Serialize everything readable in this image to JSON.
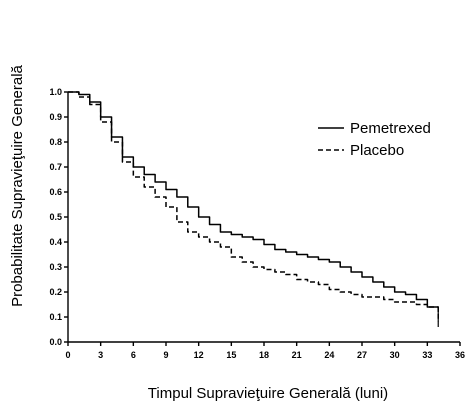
{
  "chart_data": {
    "type": "line",
    "title": "",
    "xlabel": "Timpul  Supravieţuire Generală (luni)",
    "ylabel": "Probabilitate Supravieţuire Generală",
    "xlim": [
      0,
      36
    ],
    "ylim": [
      0,
      1.0
    ],
    "x_ticks": [
      0,
      3,
      6,
      9,
      12,
      15,
      18,
      21,
      24,
      27,
      30,
      33,
      36
    ],
    "y_ticks": [
      0.0,
      0.1,
      0.2,
      0.3,
      0.4,
      0.5,
      0.6,
      0.7,
      0.8,
      0.9,
      1.0
    ],
    "x_tick_labels": [
      "0",
      "3",
      "6",
      "9",
      "12",
      "15",
      "18",
      "21",
      "24",
      "27",
      "30",
      "33",
      "36"
    ],
    "y_tick_labels": [
      "0.0",
      "0.1",
      "0.2",
      "0.3",
      "0.4",
      "0.5",
      "0.6",
      "0.7",
      "0.8",
      "0.9",
      "1.0"
    ],
    "grid": false,
    "legend_position": "top-right",
    "series": [
      {
        "name": "Pemetrexed",
        "style": "solid",
        "color": "#000000",
        "x": [
          0,
          1,
          2,
          3,
          4,
          5,
          6,
          7,
          8,
          9,
          10,
          11,
          12,
          13,
          14,
          15,
          16,
          17,
          18,
          19,
          20,
          21,
          22,
          23,
          24,
          25,
          26,
          27,
          28,
          29,
          30,
          31,
          32,
          33,
          34
        ],
        "y": [
          1.0,
          0.99,
          0.96,
          0.9,
          0.82,
          0.74,
          0.7,
          0.67,
          0.64,
          0.61,
          0.58,
          0.54,
          0.5,
          0.47,
          0.44,
          0.43,
          0.42,
          0.41,
          0.39,
          0.37,
          0.36,
          0.35,
          0.34,
          0.33,
          0.32,
          0.3,
          0.28,
          0.26,
          0.24,
          0.22,
          0.2,
          0.19,
          0.17,
          0.14,
          0.12
        ]
      },
      {
        "name": "Placebo",
        "style": "dashed",
        "color": "#000000",
        "x": [
          0,
          1,
          2,
          3,
          4,
          5,
          6,
          7,
          8,
          9,
          10,
          11,
          12,
          13,
          14,
          15,
          16,
          17,
          18,
          19,
          20,
          21,
          22,
          23,
          24,
          25,
          26,
          27,
          28,
          29,
          30,
          31,
          32,
          33,
          34
        ],
        "y": [
          1.0,
          0.98,
          0.95,
          0.88,
          0.8,
          0.72,
          0.66,
          0.62,
          0.58,
          0.54,
          0.48,
          0.44,
          0.42,
          0.4,
          0.38,
          0.34,
          0.32,
          0.3,
          0.29,
          0.28,
          0.27,
          0.25,
          0.24,
          0.23,
          0.21,
          0.2,
          0.19,
          0.18,
          0.18,
          0.17,
          0.16,
          0.16,
          0.15,
          0.14,
          0.08
        ]
      }
    ]
  }
}
